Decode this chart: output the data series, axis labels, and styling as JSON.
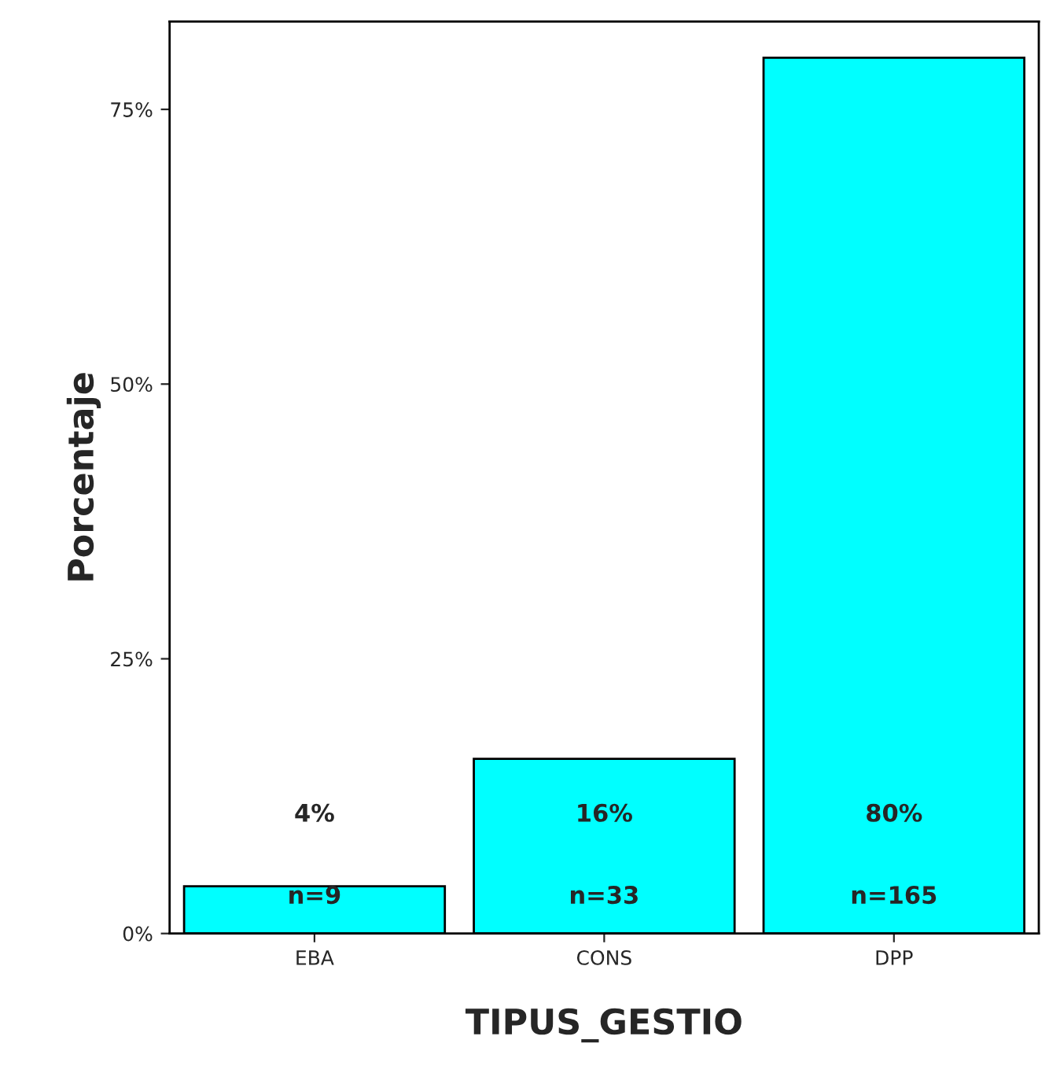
{
  "chart_data": {
    "type": "bar",
    "categories": [
      "EBA",
      "CONS",
      "DPP"
    ],
    "values": [
      4.3,
      15.9,
      79.7
    ],
    "color": "#00ffff",
    "xlabel": "TIPUS_GESTIO",
    "ylabel": "Porcentaje",
    "ylim": [
      0,
      83
    ],
    "yticks": [
      {
        "value": 0,
        "label": "0%"
      },
      {
        "value": 25,
        "label": "25%"
      },
      {
        "value": 50,
        "label": "50%"
      },
      {
        "value": 75,
        "label": "75%"
      }
    ],
    "grid": false,
    "value_labels": [
      "4%",
      "16%",
      "80%"
    ],
    "annotations": [
      "n=9",
      "n=33",
      "n=165"
    ]
  }
}
